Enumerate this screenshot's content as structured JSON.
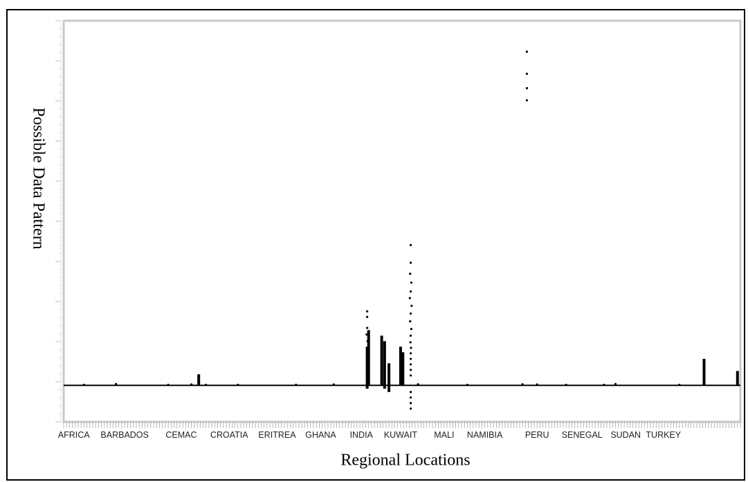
{
  "colors": {
    "frame": "#000000",
    "plot_border": "#c9c9c9",
    "points": "#000000",
    "zero_line": "#000000"
  },
  "chart_data": {
    "type": "scatter",
    "title": "",
    "xlabel": "Regional Locations",
    "ylabel": "Possible Data Pattern",
    "tick_labels": [
      "AFRICA",
      "BARBADOS",
      "CEMAC",
      "CROATIA",
      "ERITREA",
      "GHANA",
      "INDIA",
      "KUWAIT",
      "MALI",
      "NAMIBIA",
      "PERU",
      "SENEGAL",
      "SUDAN",
      "TURKEY"
    ],
    "tick_label_positions": [
      3.5,
      21,
      40.5,
      57,
      73.5,
      88.5,
      102.5,
      116,
      131,
      145,
      163,
      178.5,
      193.5,
      206.5
    ],
    "xlim": [
      0,
      233
    ],
    "ylim": [
      -3.3,
      33
    ],
    "grid": false,
    "legend": "none",
    "clusters": [
      {
        "x": 46.5,
        "ymin": 0,
        "ymax": 1.0
      },
      {
        "x": 104.5,
        "ymin": -0.3,
        "ymax": 3.5
      },
      {
        "x": 105.0,
        "ymin": 0,
        "ymax": 5.0
      },
      {
        "x": 109.5,
        "ymin": 0,
        "ymax": 4.5
      },
      {
        "x": 110.5,
        "ymin": -0.3,
        "ymax": 4.0
      },
      {
        "x": 112.0,
        "ymin": -0.6,
        "ymax": 2.0
      },
      {
        "x": 116.0,
        "ymin": 0,
        "ymax": 3.5
      },
      {
        "x": 116.8,
        "ymin": 0,
        "ymax": 3.0
      },
      {
        "x": 220.5,
        "ymin": 0,
        "ymax": 2.4
      },
      {
        "x": 232.0,
        "ymin": 0,
        "ymax": 1.3
      }
    ],
    "points": [
      {
        "x": 159.5,
        "y": 30.2
      },
      {
        "x": 159.5,
        "y": 28.2
      },
      {
        "x": 159.5,
        "y": 26.9
      },
      {
        "x": 159.5,
        "y": 25.8
      },
      {
        "x": 104.5,
        "y": 6.7
      },
      {
        "x": 104.5,
        "y": 6.2
      },
      {
        "x": 104.5,
        "y": 5.2
      },
      {
        "x": 104.3,
        "y": 4.6
      },
      {
        "x": 104.6,
        "y": 4.0
      },
      {
        "x": 119.5,
        "y": 12.7
      },
      {
        "x": 119.5,
        "y": 11.1
      },
      {
        "x": 119.3,
        "y": 10.1
      },
      {
        "x": 119.7,
        "y": 9.3
      },
      {
        "x": 119.5,
        "y": 8.5
      },
      {
        "x": 119.2,
        "y": 7.9
      },
      {
        "x": 119.8,
        "y": 7.2
      },
      {
        "x": 119.5,
        "y": 6.5
      },
      {
        "x": 119.3,
        "y": 5.8
      },
      {
        "x": 119.7,
        "y": 5.1
      },
      {
        "x": 119.5,
        "y": 4.5
      },
      {
        "x": 119.4,
        "y": 3.9
      },
      {
        "x": 119.6,
        "y": 3.4
      },
      {
        "x": 119.5,
        "y": 2.9
      },
      {
        "x": 119.5,
        "y": 2.4
      },
      {
        "x": 119.5,
        "y": 1.9
      },
      {
        "x": 119.5,
        "y": 1.4
      },
      {
        "x": 119.5,
        "y": 0.9
      },
      {
        "x": 119.5,
        "y": -0.6
      },
      {
        "x": 119.5,
        "y": -1.1
      },
      {
        "x": 119.5,
        "y": -1.6
      },
      {
        "x": 119.5,
        "y": -2.1
      },
      {
        "x": 18.0,
        "y": 0.12
      },
      {
        "x": 7.0,
        "y": 0.05
      },
      {
        "x": 36.0,
        "y": 0.05
      },
      {
        "x": 44.0,
        "y": 0.08
      },
      {
        "x": 49.0,
        "y": 0.05
      },
      {
        "x": 60.0,
        "y": 0.05
      },
      {
        "x": 80.0,
        "y": 0.05
      },
      {
        "x": 93.0,
        "y": 0.08
      },
      {
        "x": 122.0,
        "y": 0.1
      },
      {
        "x": 139.0,
        "y": 0.05
      },
      {
        "x": 158.0,
        "y": 0.1
      },
      {
        "x": 163.0,
        "y": 0.08
      },
      {
        "x": 173.0,
        "y": 0.05
      },
      {
        "x": 186.0,
        "y": 0.05
      },
      {
        "x": 190.0,
        "y": 0.12
      },
      {
        "x": 212.0,
        "y": 0.05
      }
    ]
  }
}
